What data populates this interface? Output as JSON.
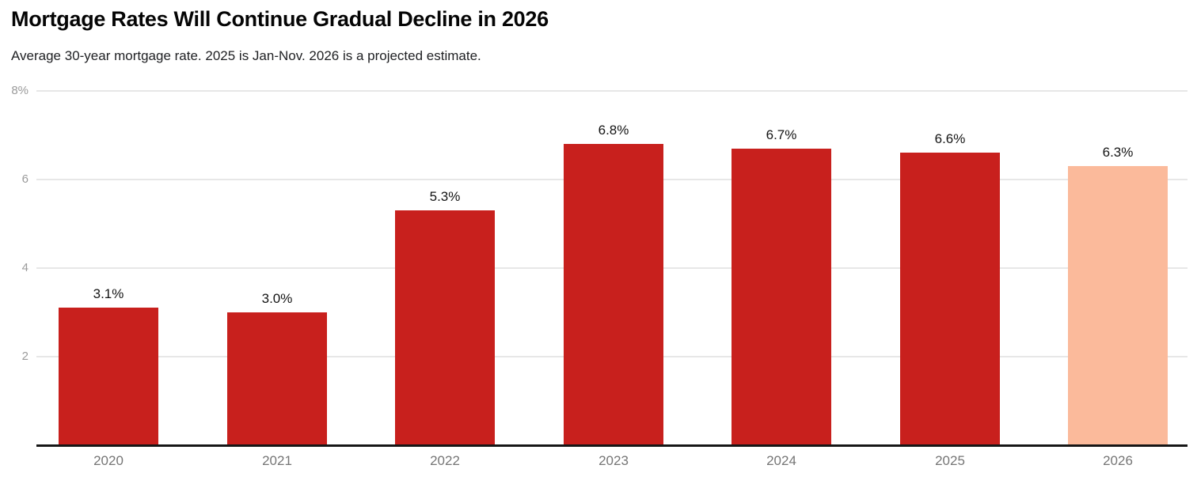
{
  "header": {
    "title": "Mortgage Rates Will Continue Gradual Decline in 2026",
    "subtitle": "Average 30-year mortgage rate. 2025 is Jan-Nov. 2026 is a projected estimate."
  },
  "colors": {
    "bar_actual": "#C8201D",
    "bar_projected": "#FBBA9B",
    "gridline": "#E7E7E7",
    "axis_line": "#161616",
    "ytick_label": "#9B9B9B",
    "xtick_label": "#757575",
    "value_label": "#141414"
  },
  "chart_data": {
    "type": "bar",
    "title": "Mortgage Rates Will Continue Gradual Decline in 2026",
    "subtitle": "Average 30-year mortgage rate. 2025 is Jan-Nov. 2026 is a projected estimate.",
    "categories": [
      "2020",
      "2021",
      "2022",
      "2023",
      "2024",
      "2025",
      "2026"
    ],
    "values": [
      3.1,
      3.0,
      5.3,
      6.8,
      6.7,
      6.6,
      6.3
    ],
    "value_labels": [
      "3.1%",
      "3.0%",
      "5.3%",
      "6.8%",
      "6.7%",
      "6.6%",
      "6.3%"
    ],
    "projected_index": 6,
    "xlabel": "",
    "ylabel": "",
    "ylim": [
      0,
      8
    ],
    "yticks": [
      2,
      4,
      6,
      8
    ],
    "ytick_labels": [
      "2",
      "4",
      "6",
      "8%"
    ],
    "grid": true,
    "legend": false,
    "series_notes": "Single series; 2026 bar rendered in light peach as projected estimate, all other bars solid red"
  }
}
